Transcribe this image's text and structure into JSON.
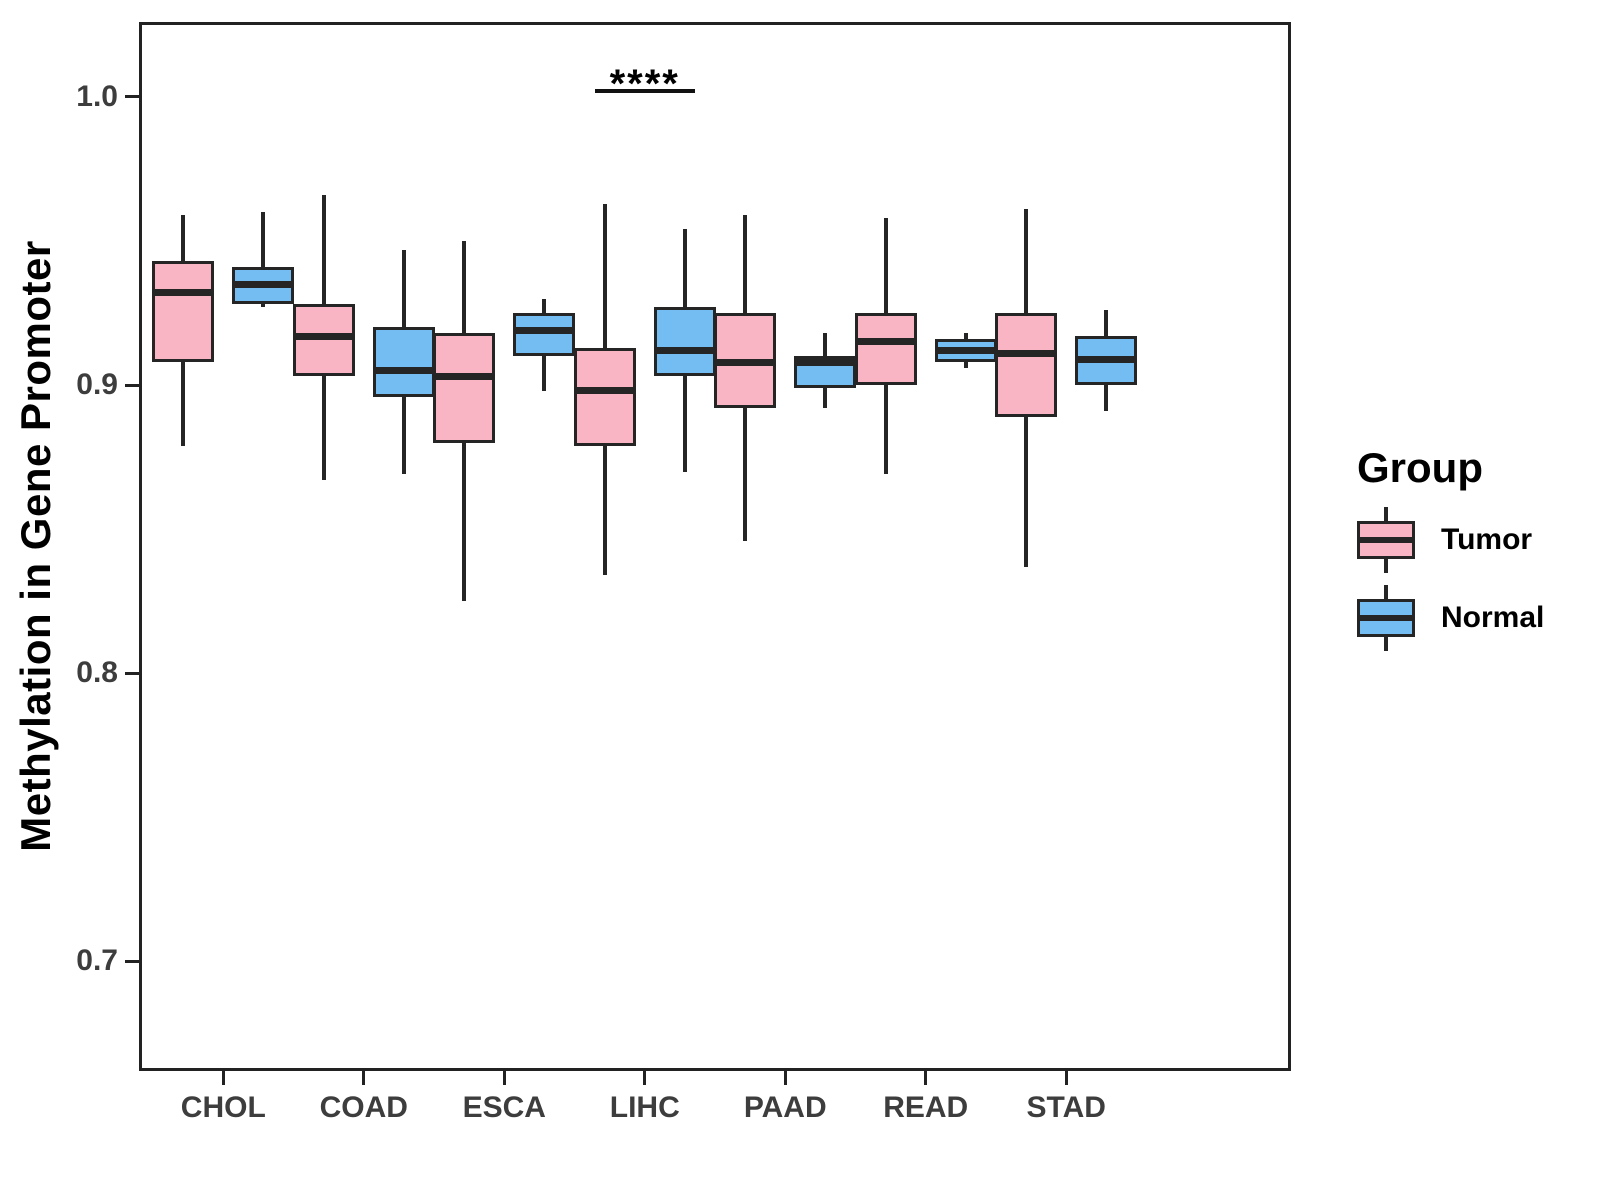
{
  "figure": {
    "background": "#ffffff"
  },
  "chart_data": {
    "type": "boxplot",
    "title": "",
    "xlabel": "",
    "ylabel": "Methylation in Gene Promoter",
    "categories": [
      "CHOL",
      "COAD",
      "ESCA",
      "LIHC",
      "PAAD",
      "READ",
      "STAD"
    ],
    "ylim": [
      0.662,
      1.026
    ],
    "yticks": [
      {
        "label": "1.0",
        "value": 1.0
      },
      {
        "label": "0.9",
        "value": 0.9
      },
      {
        "label": "0.8",
        "value": 0.8
      },
      {
        "label": "0.7",
        "value": 0.7
      }
    ],
    "grid": "off",
    "legend": {
      "title": "Group",
      "position": "right"
    },
    "series": [
      {
        "name": "Tumor",
        "fill": "#F9B5C4",
        "boxes": [
          {
            "category": "CHOL",
            "whisker_low": 0.879,
            "q1": 0.908,
            "median": 0.932,
            "q3": 0.943,
            "whisker_high": 0.959
          },
          {
            "category": "COAD",
            "whisker_low": 0.867,
            "q1": 0.903,
            "median": 0.917,
            "q3": 0.928,
            "whisker_high": 0.966
          },
          {
            "category": "ESCA",
            "whisker_low": 0.825,
            "q1": 0.88,
            "median": 0.903,
            "q3": 0.918,
            "whisker_high": 0.95
          },
          {
            "category": "LIHC",
            "whisker_low": 0.834,
            "q1": 0.879,
            "median": 0.898,
            "q3": 0.913,
            "whisker_high": 0.963
          },
          {
            "category": "PAAD",
            "whisker_low": 0.846,
            "q1": 0.892,
            "median": 0.908,
            "q3": 0.925,
            "whisker_high": 0.959
          },
          {
            "category": "READ",
            "whisker_low": 0.869,
            "q1": 0.9,
            "median": 0.915,
            "q3": 0.925,
            "whisker_high": 0.958
          },
          {
            "category": "STAD",
            "whisker_low": 0.837,
            "q1": 0.889,
            "median": 0.911,
            "q3": 0.925,
            "whisker_high": 0.961
          }
        ]
      },
      {
        "name": "Normal",
        "fill": "#73BDF2",
        "boxes": [
          {
            "category": "CHOL",
            "whisker_low": 0.927,
            "q1": 0.928,
            "median": 0.935,
            "q3": 0.941,
            "whisker_high": 0.96
          },
          {
            "category": "COAD",
            "whisker_low": 0.869,
            "q1": 0.896,
            "median": 0.905,
            "q3": 0.92,
            "whisker_high": 0.947
          },
          {
            "category": "ESCA",
            "whisker_low": 0.898,
            "q1": 0.91,
            "median": 0.919,
            "q3": 0.925,
            "whisker_high": 0.93
          },
          {
            "category": "LIHC",
            "whisker_low": 0.87,
            "q1": 0.903,
            "median": 0.912,
            "q3": 0.927,
            "whisker_high": 0.954
          },
          {
            "category": "PAAD",
            "whisker_low": 0.892,
            "q1": 0.899,
            "median": 0.908,
            "q3": 0.91,
            "whisker_high": 0.918
          },
          {
            "category": "READ",
            "whisker_low": 0.906,
            "q1": 0.908,
            "median": 0.912,
            "q3": 0.916,
            "whisker_high": 0.918
          },
          {
            "category": "STAD",
            "whisker_low": 0.891,
            "q1": 0.9,
            "median": 0.909,
            "q3": 0.917,
            "whisker_high": 0.926
          }
        ]
      }
    ],
    "annotations": [
      {
        "label": "****",
        "category": "LIHC",
        "y": 1.002,
        "spans": [
          "Tumor",
          "Normal"
        ]
      }
    ],
    "style": {
      "box_border": "#252525",
      "axis_color": "#222222",
      "tick_label_color": "#3d3d3d",
      "title_color": "#000000"
    }
  }
}
